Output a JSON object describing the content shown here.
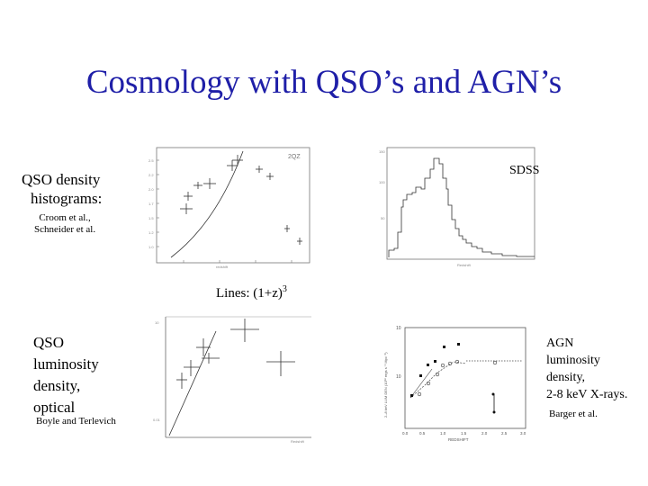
{
  "slide": {
    "title": "Cosmology with QSO’s and AGN’s",
    "qso_density": {
      "label_line1": "QSO density",
      "label_line2": "histograms:",
      "refs_line1": "Croom et al.,",
      "refs_line2": "Schneider et al."
    },
    "sdss_label": "SDSS",
    "lines_note": {
      "text": "Lines: (1+z)",
      "exponent": "3"
    },
    "qso_luminosity": {
      "line1": "QSO",
      "line2": "luminosity",
      "line3": "density,",
      "line4": "optical",
      "ref": "Boyle and Terlevich"
    },
    "agn": {
      "line1": "AGN",
      "line2": "luminosity",
      "line3": "density,",
      "line4": "2-8 keV X-rays.",
      "ref": "Barger et al."
    }
  },
  "figures": {
    "croom_plot": {
      "tag": "2QZ"
    },
    "agn_plot": {
      "y_ticks": [
        "10",
        "10"
      ],
      "x_ticks": [
        "0.0",
        "0.5",
        "1.0",
        "1.5",
        "2.0",
        "2.5",
        "3.0"
      ],
      "xlabel": "REDSHIFT"
    }
  },
  "colors": {
    "title": "#1f1fa8",
    "plot_line": "#333333"
  }
}
